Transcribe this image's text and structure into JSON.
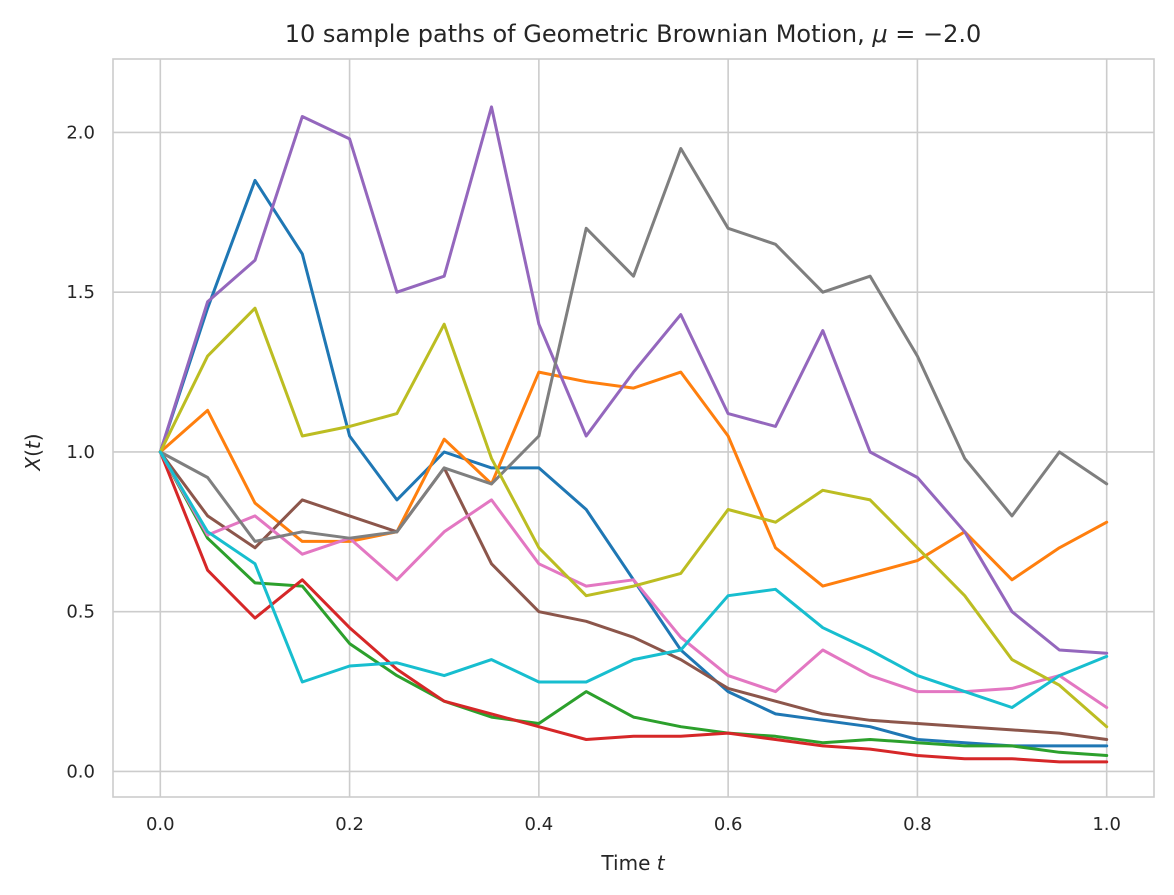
{
  "chart_data": {
    "type": "line",
    "title": "10 sample paths of Geometric Brownian Motion, μ = −2.0",
    "title_parts": [
      "10 sample paths of Geometric Brownian Motion, ",
      "μ",
      " = −2.0"
    ],
    "xlabel": "Time t",
    "xlabel_parts": [
      "Time ",
      "t"
    ],
    "ylabel": "X(t)",
    "ylabel_parts": [
      "X",
      "(",
      "t",
      ")"
    ],
    "xlim": [
      -0.05,
      1.05
    ],
    "ylim": [
      -0.08,
      2.23
    ],
    "xticks": [
      0.0,
      0.2,
      0.4,
      0.6,
      0.8,
      1.0
    ],
    "xtick_labels": [
      "0.0",
      "0.2",
      "0.4",
      "0.6",
      "0.8",
      "1.0"
    ],
    "yticks": [
      0.0,
      0.5,
      1.0,
      1.5,
      2.0
    ],
    "ytick_labels": [
      "0.0",
      "0.5",
      "1.0",
      "1.5",
      "2.0"
    ],
    "grid": true,
    "legend": false,
    "x": [
      0.0,
      0.05,
      0.1,
      0.15,
      0.2,
      0.25,
      0.3,
      0.35,
      0.4,
      0.45,
      0.5,
      0.55,
      0.6,
      0.65,
      0.7,
      0.75,
      0.8,
      0.85,
      0.9,
      0.95,
      1.0
    ],
    "series": [
      {
        "color": "#1f77b4",
        "values": [
          1.0,
          1.45,
          1.85,
          1.62,
          1.05,
          0.85,
          1.0,
          0.95,
          0.95,
          0.82,
          0.6,
          0.38,
          0.25,
          0.18,
          0.16,
          0.14,
          0.1,
          0.09,
          0.08,
          0.08,
          0.08
        ]
      },
      {
        "color": "#ff7f0e",
        "values": [
          1.0,
          1.13,
          0.84,
          0.72,
          0.72,
          0.75,
          1.04,
          0.9,
          1.25,
          1.22,
          1.2,
          1.25,
          1.05,
          0.7,
          0.58,
          0.62,
          0.66,
          0.75,
          0.6,
          0.7,
          0.78
        ]
      },
      {
        "color": "#2ca02c",
        "values": [
          1.0,
          0.73,
          0.59,
          0.58,
          0.4,
          0.3,
          0.22,
          0.17,
          0.15,
          0.25,
          0.17,
          0.14,
          0.12,
          0.11,
          0.09,
          0.1,
          0.09,
          0.08,
          0.08,
          0.06,
          0.05
        ]
      },
      {
        "color": "#d62728",
        "values": [
          1.0,
          0.63,
          0.48,
          0.6,
          0.45,
          0.32,
          0.22,
          0.18,
          0.14,
          0.1,
          0.11,
          0.11,
          0.12,
          0.1,
          0.08,
          0.07,
          0.05,
          0.04,
          0.04,
          0.03,
          0.03
        ]
      },
      {
        "color": "#9467bd",
        "values": [
          1.0,
          1.47,
          1.6,
          2.05,
          1.98,
          1.5,
          1.55,
          2.08,
          1.4,
          1.05,
          1.25,
          1.43,
          1.12,
          1.08,
          1.38,
          1.0,
          0.92,
          0.75,
          0.5,
          0.38,
          0.37
        ]
      },
      {
        "color": "#8c564b",
        "values": [
          1.0,
          0.8,
          0.7,
          0.85,
          0.8,
          0.75,
          0.95,
          0.65,
          0.5,
          0.47,
          0.42,
          0.35,
          0.26,
          0.22,
          0.18,
          0.16,
          0.15,
          0.14,
          0.13,
          0.12,
          0.1
        ]
      },
      {
        "color": "#e377c2",
        "values": [
          1.0,
          0.74,
          0.8,
          0.68,
          0.73,
          0.6,
          0.75,
          0.85,
          0.65,
          0.58,
          0.6,
          0.42,
          0.3,
          0.25,
          0.38,
          0.3,
          0.25,
          0.25,
          0.26,
          0.3,
          0.2
        ]
      },
      {
        "color": "#7f7f7f",
        "values": [
          1.0,
          0.92,
          0.72,
          0.75,
          0.73,
          0.75,
          0.95,
          0.9,
          1.05,
          1.7,
          1.55,
          1.95,
          1.7,
          1.65,
          1.5,
          1.55,
          1.3,
          0.98,
          0.8,
          1.0,
          0.9
        ]
      },
      {
        "color": "#bcbd22",
        "values": [
          1.0,
          1.3,
          1.45,
          1.05,
          1.08,
          1.12,
          1.4,
          0.98,
          0.7,
          0.55,
          0.58,
          0.62,
          0.82,
          0.78,
          0.88,
          0.85,
          0.7,
          0.55,
          0.35,
          0.27,
          0.14
        ]
      },
      {
        "color": "#17becf",
        "values": [
          1.0,
          0.75,
          0.65,
          0.28,
          0.33,
          0.34,
          0.3,
          0.35,
          0.28,
          0.28,
          0.35,
          0.38,
          0.55,
          0.57,
          0.45,
          0.38,
          0.3,
          0.25,
          0.2,
          0.3,
          0.36
        ]
      }
    ]
  }
}
